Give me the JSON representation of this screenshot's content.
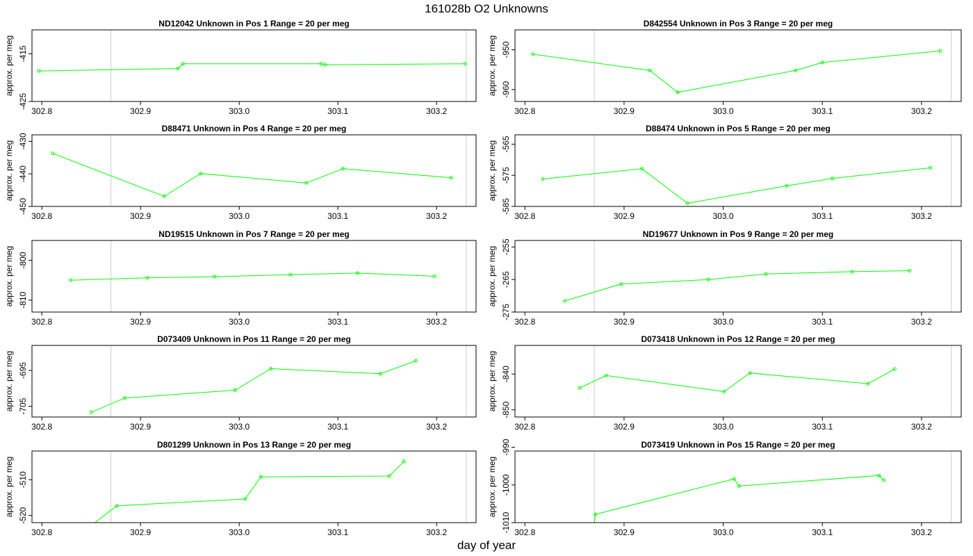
{
  "figure": {
    "title": "161028b  O2 Unknowns",
    "xlabel": "day of year",
    "ylabel": "approx. per meg",
    "line_color": "#00ff00",
    "vline_color": "#cccccc",
    "x_ticks": [
      "302.8",
      "302.9",
      "303.0",
      "303.1",
      "303.2"
    ],
    "vlines": [
      302.87,
      303.23
    ]
  },
  "chart_data": [
    {
      "type": "line",
      "title": "ND12042    Unknown in Pos 1          Range = 20 per meg",
      "xlim": [
        302.79,
        303.24
      ],
      "ylim": [
        -425,
        -410
      ],
      "y_ticks": [
        "-415",
        "-425"
      ],
      "y_tick_values": [
        -415,
        -425
      ],
      "x": [
        302.797,
        302.938,
        302.943,
        303.083,
        303.087,
        303.229
      ],
      "y": [
        -418.6,
        -418.1,
        -417.1,
        -417.1,
        -417.3,
        -417.1
      ]
    },
    {
      "type": "line",
      "title": "D842554    Unknown in Pos 3          Range = 20 per meg",
      "xlim": [
        302.79,
        303.24
      ],
      "ylim": [
        -963,
        -945
      ],
      "y_ticks": [
        "-950",
        "-960"
      ],
      "y_tick_values": [
        -950,
        -960
      ],
      "x": [
        302.808,
        302.926,
        302.954,
        303.073,
        303.1,
        303.219
      ],
      "y": [
        -951.1,
        -955.2,
        -960.7,
        -955.2,
        -953.2,
        -950.3
      ]
    },
    {
      "type": "line",
      "title": "D88471    Unknown in Pos 4          Range = 20 per meg",
      "xlim": [
        302.79,
        303.24
      ],
      "ylim": [
        -450,
        -428
      ],
      "y_ticks": [
        "-430",
        "-440",
        "-450"
      ],
      "y_tick_values": [
        -430,
        -440,
        -450
      ],
      "x": [
        302.811,
        302.924,
        302.961,
        303.068,
        303.105,
        303.215
      ],
      "y": [
        -433.7,
        -446.9,
        -439.9,
        -442.8,
        -438.4,
        -441.2
      ]
    },
    {
      "type": "line",
      "title": "D88474    Unknown in Pos 5          Range = 20 per meg",
      "xlim": [
        302.79,
        303.24
      ],
      "ylim": [
        -585,
        -562
      ],
      "y_ticks": [
        "-565",
        "-575",
        "-585"
      ],
      "y_tick_values": [
        -565,
        -575,
        -585
      ],
      "x": [
        302.818,
        302.918,
        302.964,
        303.064,
        303.11,
        303.209
      ],
      "y": [
        -576.2,
        -572.9,
        -584.0,
        -578.4,
        -576.0,
        -572.6
      ]
    },
    {
      "type": "line",
      "title": "ND19515    Unknown in Pos 7          Range = 20 per meg",
      "xlim": [
        302.79,
        303.24
      ],
      "ylim": [
        -813,
        -795
      ],
      "y_ticks": [
        "-800",
        "-810"
      ],
      "y_tick_values": [
        -800,
        -810
      ],
      "x": [
        302.829,
        302.907,
        302.975,
        303.052,
        303.12,
        303.198
      ],
      "y": [
        -805.0,
        -804.4,
        -804.1,
        -803.6,
        -803.2,
        -804.0
      ]
    },
    {
      "type": "line",
      "title": "ND19677    Unknown in Pos 9          Range = 20 per meg",
      "xlim": [
        302.79,
        303.24
      ],
      "ylim": [
        -275,
        -253
      ],
      "y_ticks": [
        "-255",
        "-265",
        "-275"
      ],
      "y_tick_values": [
        -255,
        -265,
        -275
      ],
      "x": [
        302.84,
        302.897,
        302.985,
        303.043,
        303.13,
        303.188
      ],
      "y": [
        -271.6,
        -266.4,
        -265.0,
        -263.3,
        -262.6,
        -262.3
      ]
    },
    {
      "type": "line",
      "title": "D073409    Unknown in Pos 11          Range = 20 per meg",
      "xlim": [
        302.79,
        303.24
      ],
      "ylim": [
        -708,
        -688
      ],
      "y_ticks": [
        "-695",
        "-705"
      ],
      "y_tick_values": [
        -695,
        -705
      ],
      "x": [
        302.85,
        302.884,
        302.996,
        303.032,
        303.143,
        303.179
      ],
      "y": [
        -706.7,
        -702.7,
        -700.5,
        -694.5,
        -695.9,
        -692.3
      ]
    },
    {
      "type": "line",
      "title": "D073418    Unknown in Pos 12          Range = 20 per meg",
      "xlim": [
        302.79,
        303.24
      ],
      "ylim": [
        -852,
        -832
      ],
      "y_ticks": [
        "-840",
        "-850"
      ],
      "y_tick_values": [
        -840,
        -850
      ],
      "x": [
        302.855,
        302.882,
        303.001,
        303.027,
        303.146,
        303.173
      ],
      "y": [
        -843.9,
        -840.4,
        -844.9,
        -839.7,
        -842.7,
        -838.6
      ]
    },
    {
      "type": "line",
      "title": "D801299    Unknown in Pos 13          Range = 20 per meg",
      "xlim": [
        302.79,
        303.24
      ],
      "ylim": [
        -522,
        -502
      ],
      "y_ticks": [
        "-510",
        "-520"
      ],
      "y_tick_values": [
        -510,
        -520
      ],
      "x": [
        302.85,
        302.876,
        303.006,
        303.022,
        303.152,
        303.167
      ],
      "y": [
        -522.8,
        -517.3,
        -515.4,
        -509.2,
        -509.0,
        -504.9
      ]
    },
    {
      "type": "line",
      "title": "D073419    Unknown in Pos 15          Range = 20 per meg",
      "xlim": [
        302.79,
        303.24
      ],
      "ylim": [
        -1010,
        -991
      ],
      "y_ticks": [
        "-990",
        "-1000",
        "-1010"
      ],
      "y_tick_values": [
        -990,
        -1000,
        -1010
      ],
      "x": [
        302.869,
        302.871,
        303.011,
        303.016,
        303.157,
        303.162
      ],
      "y": [
        -1012.0,
        -1007.8,
        -998.4,
        -1000.3,
        -997.5,
        -998.7
      ]
    }
  ]
}
